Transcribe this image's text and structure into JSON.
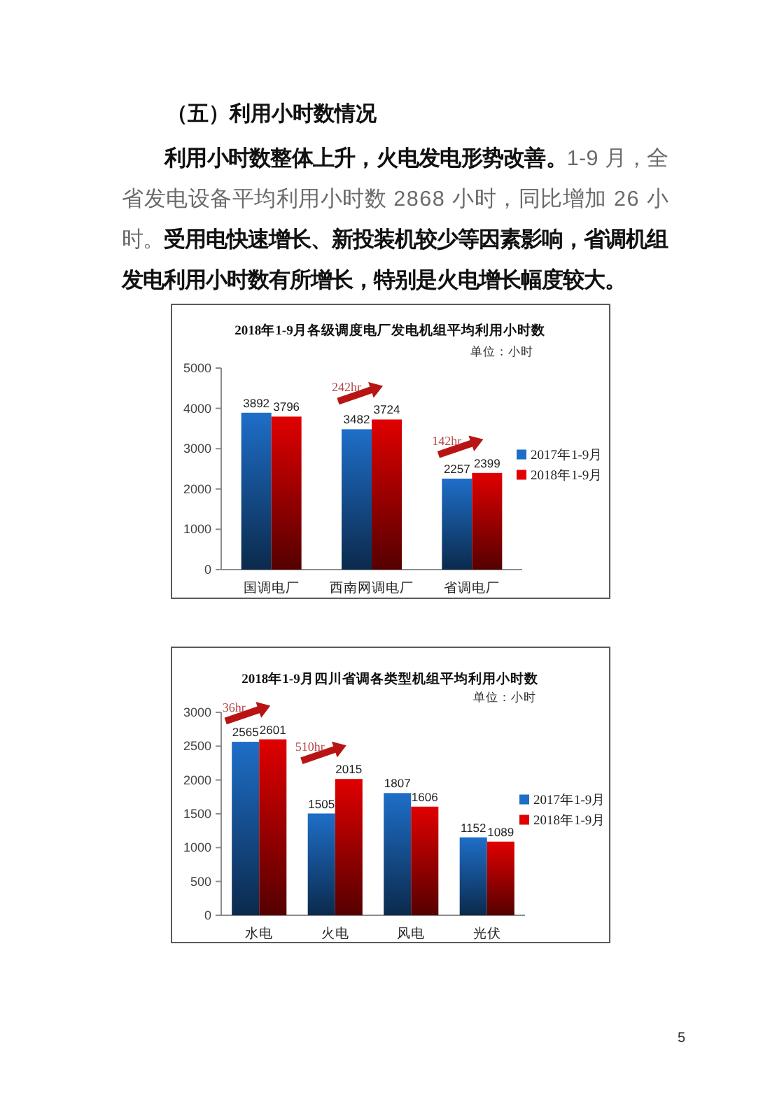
{
  "chart_data": [
    {
      "type": "other",
      "title": "（五）利用小时数情况",
      "annotations": [
        "利用小时数整体上升，火电发电形势改善。1-9 月，全省发电设备平均利用小时数 2868 小时，同比增加 26 小时。受用电快速增长、新投装机较少等因素影响，省调机组发电利用小时数有所增长，特别是火电增长幅度较大。"
      ]
    },
    {
      "type": "bar",
      "title": "2018年1-9月各级调度电厂发电机组平均利用小时数",
      "subtitle": "单位：小时",
      "categories": [
        "国调电厂",
        "西南网调电厂",
        "省调电厂"
      ],
      "series": [
        {
          "name": "2017年1-9月",
          "color": "#1e6ec8",
          "values": [
            3892,
            3482,
            2257
          ]
        },
        {
          "name": "2018年1-9月",
          "color": "#e00000",
          "values": [
            3796,
            3724,
            2399
          ]
        }
      ],
      "ylim": [
        0,
        5000
      ],
      "yticks": [
        0,
        1000,
        2000,
        3000,
        4000,
        5000
      ],
      "data_labels": true,
      "legend": "right",
      "annotations": [
        {
          "text": "242hr",
          "x": "西南网调电厂",
          "y": 3724
        },
        {
          "text": "142hr",
          "x": "省调电厂",
          "y": 2399
        }
      ]
    },
    {
      "type": "bar",
      "title": "2018年1-9月四川省调各类型机组平均利用小时数",
      "subtitle": "单位：小时",
      "categories": [
        "水电",
        "火电",
        "风电",
        "光伏"
      ],
      "series": [
        {
          "name": "2017年1-9月",
          "color": "#1e6ec8",
          "values": [
            2565,
            1505,
            1807,
            1152
          ]
        },
        {
          "name": "2018年1-9月",
          "color": "#e00000",
          "values": [
            2601,
            2015,
            1606,
            1089
          ]
        }
      ],
      "ylim": [
        0,
        3000
      ],
      "yticks": [
        0,
        500,
        1000,
        1500,
        2000,
        2500,
        3000
      ],
      "data_labels": true,
      "legend": "right",
      "annotations": [
        {
          "text": "36hr",
          "x": "水电",
          "y": 2601
        },
        {
          "text": "510hr",
          "x": "火电",
          "y": 2015
        }
      ]
    },
    {
      "type": "other",
      "annotations": [
        "5"
      ]
    }
  ]
}
